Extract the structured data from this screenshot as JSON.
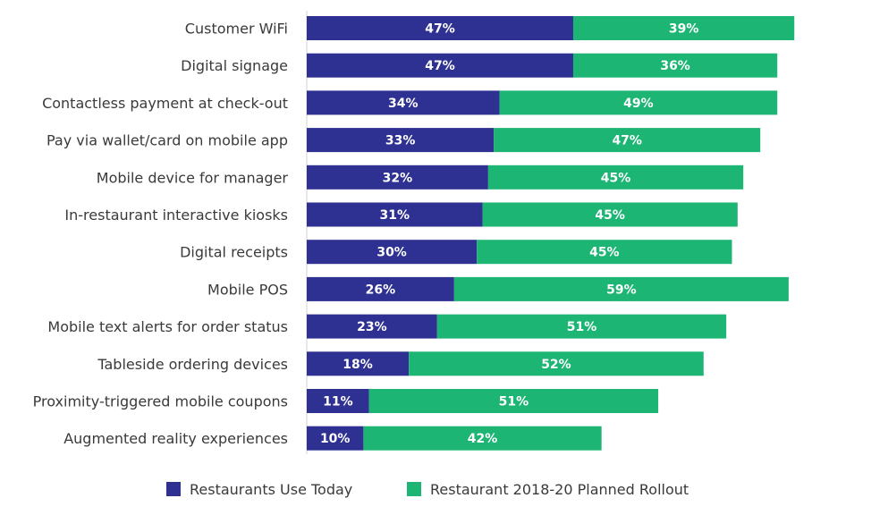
{
  "chart_data": {
    "type": "bar",
    "orientation": "horizontal",
    "stacked": true,
    "categories": [
      "Customer WiFi",
      "Digital signage",
      "Contactless payment at check-out",
      "Pay via wallet/card on mobile app",
      "Mobile device for manager",
      "In-restaurant interactive kiosks",
      "Digital receipts",
      "Mobile POS",
      "Mobile text alerts for order status",
      "Tableside ordering devices",
      "Proximity-triggered mobile coupons",
      "Augmented reality experiences"
    ],
    "series": [
      {
        "name": "Restaurants Use Today",
        "color": "#2e3192",
        "values": [
          47,
          47,
          34,
          33,
          32,
          31,
          30,
          26,
          23,
          18,
          11,
          10
        ],
        "labels": [
          "47%",
          "47%",
          "34%",
          "33%",
          "32%",
          "31%",
          "30%",
          "26%",
          "23%",
          "18%",
          "11%",
          "10%"
        ]
      },
      {
        "name": "Restaurant 2018-20 Planned Rollout",
        "color": "#1db574",
        "values": [
          39,
          36,
          49,
          47,
          45,
          45,
          45,
          59,
          51,
          52,
          51,
          42
        ],
        "labels": [
          "39%",
          "36%",
          "49%",
          "47%",
          "45%",
          "45%",
          "45%",
          "59%",
          "51%",
          "52%",
          "51%",
          "42%"
        ]
      }
    ],
    "title": "",
    "xlabel": "",
    "ylabel": "",
    "grid": false,
    "legend_position": "bottom"
  }
}
